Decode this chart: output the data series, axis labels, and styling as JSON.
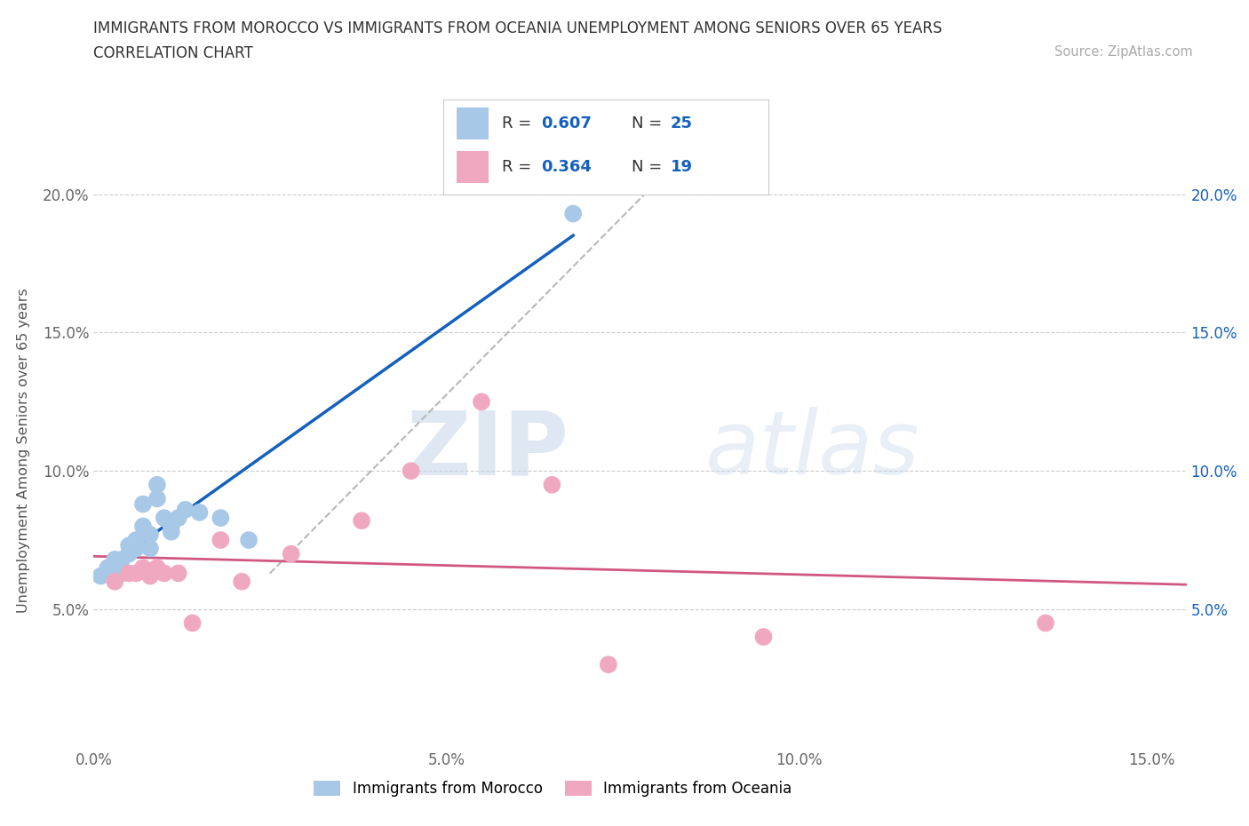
{
  "title_line1": "IMMIGRANTS FROM MOROCCO VS IMMIGRANTS FROM OCEANIA UNEMPLOYMENT AMONG SENIORS OVER 65 YEARS",
  "title_line2": "CORRELATION CHART",
  "source_text": "Source: ZipAtlas.com",
  "ylabel": "Unemployment Among Seniors over 65 years",
  "xlim": [
    0.0,
    0.155
  ],
  "ylim": [
    0.0,
    0.215
  ],
  "x_ticks": [
    0.0,
    0.05,
    0.1,
    0.15
  ],
  "x_tick_labels": [
    "0.0%",
    "5.0%",
    "10.0%",
    "15.0%"
  ],
  "y_ticks": [
    0.05,
    0.1,
    0.15,
    0.2
  ],
  "y_tick_labels": [
    "5.0%",
    "10.0%",
    "15.0%",
    "20.0%"
  ],
  "morocco_color": "#a8c8e8",
  "oceania_color": "#f0a8c0",
  "morocco_line_color": "#1560bd",
  "oceania_line_color": "#d05880",
  "diagonal_color": "#b8b8b8",
  "watermark_zip": "ZIP",
  "watermark_atlas": "atlas",
  "legend_R_morocco": "0.607",
  "legend_N_morocco": "25",
  "legend_R_oceania": "0.364",
  "legend_N_oceania": "19",
  "morocco_x": [
    0.001,
    0.002,
    0.003,
    0.003,
    0.004,
    0.004,
    0.005,
    0.005,
    0.006,
    0.006,
    0.007,
    0.007,
    0.008,
    0.008,
    0.009,
    0.009,
    0.01,
    0.011,
    0.011,
    0.012,
    0.013,
    0.015,
    0.018,
    0.022,
    0.068
  ],
  "morocco_y": [
    0.062,
    0.065,
    0.065,
    0.068,
    0.063,
    0.068,
    0.07,
    0.073,
    0.072,
    0.075,
    0.088,
    0.08,
    0.077,
    0.072,
    0.095,
    0.09,
    0.083,
    0.078,
    0.08,
    0.083,
    0.086,
    0.085,
    0.083,
    0.075,
    0.193
  ],
  "oceania_x": [
    0.003,
    0.005,
    0.006,
    0.007,
    0.008,
    0.009,
    0.01,
    0.012,
    0.014,
    0.018,
    0.021,
    0.028,
    0.038,
    0.045,
    0.055,
    0.065,
    0.073,
    0.095,
    0.135
  ],
  "oceania_y": [
    0.06,
    0.063,
    0.063,
    0.065,
    0.062,
    0.065,
    0.063,
    0.063,
    0.045,
    0.075,
    0.06,
    0.07,
    0.082,
    0.1,
    0.125,
    0.095,
    0.03,
    0.04,
    0.045
  ]
}
